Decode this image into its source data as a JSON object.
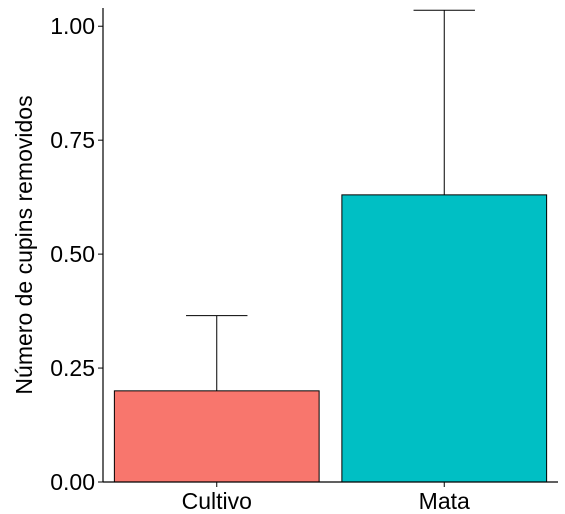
{
  "chart_data": {
    "type": "bar",
    "title": "",
    "xlabel": "",
    "ylabel": "Número de cupins removidos",
    "categories": [
      "Cultivo",
      "Mata"
    ],
    "values": [
      0.2,
      0.63
    ],
    "error_upper": [
      0.365,
      1.035
    ],
    "ylim": [
      0,
      1.04
    ],
    "yticks": [
      0.0,
      0.25,
      0.5,
      0.75,
      1.0
    ],
    "ytick_labels": [
      "0.00",
      "0.25",
      "0.50",
      "0.75",
      "1.00"
    ],
    "colors": [
      "#F8766D",
      "#00BFC4"
    ],
    "grid": false,
    "legend": "none"
  }
}
